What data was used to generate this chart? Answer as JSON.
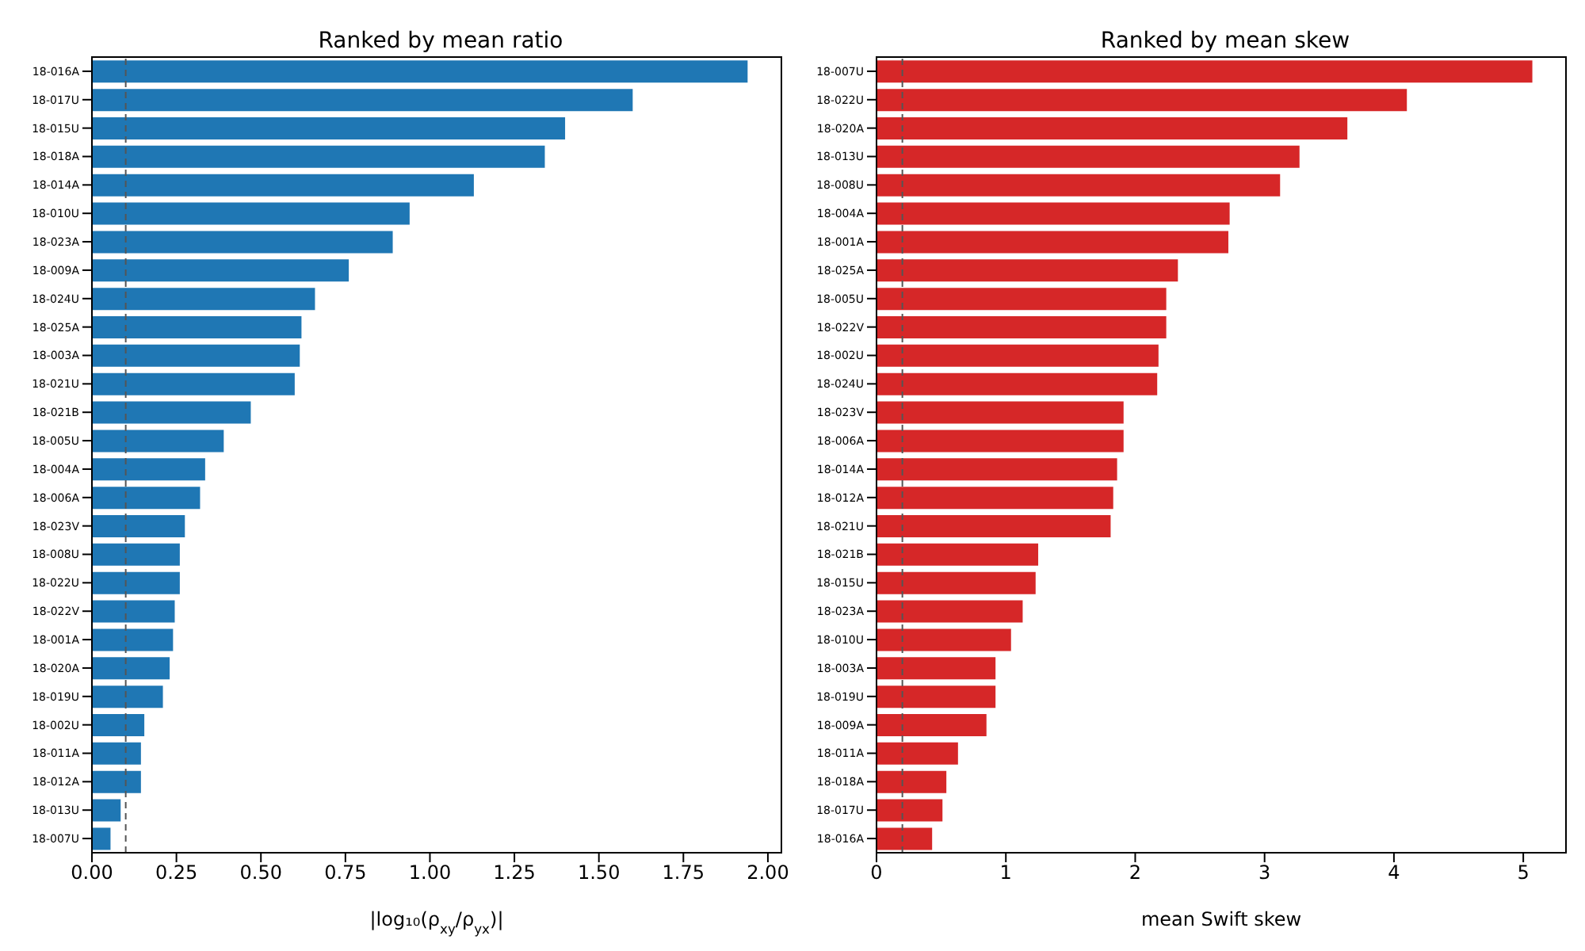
{
  "chart_data": [
    {
      "type": "bar",
      "orientation": "horizontal",
      "title": "Ranked by mean ratio",
      "xlabel": "|log₁₀(ρ$_{xy}$/ρ$_{yx}$)|",
      "categories": [
        "18-016A",
        "18-017U",
        "18-015U",
        "18-018A",
        "18-014A",
        "18-010U",
        "18-023A",
        "18-009A",
        "18-024U",
        "18-025A",
        "18-003A",
        "18-021U",
        "18-021B",
        "18-005U",
        "18-004A",
        "18-006A",
        "18-023V",
        "18-008U",
        "18-022U",
        "18-022V",
        "18-001A",
        "18-020A",
        "18-019U",
        "18-002U",
        "18-011A",
        "18-012A",
        "18-013U",
        "18-007U"
      ],
      "values": [
        1.94,
        1.6,
        1.4,
        1.34,
        1.13,
        0.94,
        0.89,
        0.76,
        0.66,
        0.62,
        0.615,
        0.6,
        0.47,
        0.39,
        0.335,
        0.32,
        0.275,
        0.26,
        0.26,
        0.245,
        0.24,
        0.23,
        0.21,
        0.155,
        0.145,
        0.145,
        0.085,
        0.055
      ],
      "color": "#1f77b4",
      "xlim": [
        0,
        2.04
      ],
      "xticks": [
        {
          "value": 0,
          "label": "0.00"
        },
        {
          "value": 0.25,
          "label": "0.25"
        },
        {
          "value": 0.5,
          "label": "0.50"
        },
        {
          "value": 0.75,
          "label": "0.75"
        },
        {
          "value": 1,
          "label": "1.00"
        },
        {
          "value": 1.25,
          "label": "1.25"
        },
        {
          "value": 1.5,
          "label": "1.50"
        },
        {
          "value": 1.75,
          "label": "1.75"
        },
        {
          "value": 2,
          "label": "2.00"
        }
      ],
      "ref_lines": [
        {
          "axis": "x",
          "value": 0.1,
          "color": "#555555",
          "line_style": "dashed"
        }
      ],
      "grid": false,
      "legend": false
    },
    {
      "type": "bar",
      "orientation": "horizontal",
      "title": "Ranked by mean skew",
      "xlabel": "mean Swift skew",
      "categories": [
        "18-007U",
        "18-022U",
        "18-020A",
        "18-013U",
        "18-008U",
        "18-004A",
        "18-001A",
        "18-025A",
        "18-005U",
        "18-022V",
        "18-002U",
        "18-024U",
        "18-023V",
        "18-006A",
        "18-014A",
        "18-012A",
        "18-021U",
        "18-021B",
        "18-015U",
        "18-023A",
        "18-010U",
        "18-003A",
        "18-019U",
        "18-009A",
        "18-011A",
        "18-018A",
        "18-017U",
        "18-016A"
      ],
      "values": [
        5.07,
        4.1,
        3.64,
        3.27,
        3.12,
        2.73,
        2.72,
        2.33,
        2.24,
        2.24,
        2.18,
        2.17,
        1.91,
        1.91,
        1.86,
        1.83,
        1.81,
        1.25,
        1.23,
        1.13,
        1.04,
        0.92,
        0.92,
        0.85,
        0.63,
        0.54,
        0.51,
        0.43
      ],
      "color": "#d62728",
      "xlim": [
        0,
        5.33
      ],
      "xticks": [
        0,
        1,
        2,
        3,
        4,
        5
      ],
      "ref_lines": [
        {
          "axis": "x",
          "value": 0.2,
          "color": "#555555",
          "line_style": "dashed"
        }
      ],
      "grid": false,
      "legend": false
    }
  ]
}
